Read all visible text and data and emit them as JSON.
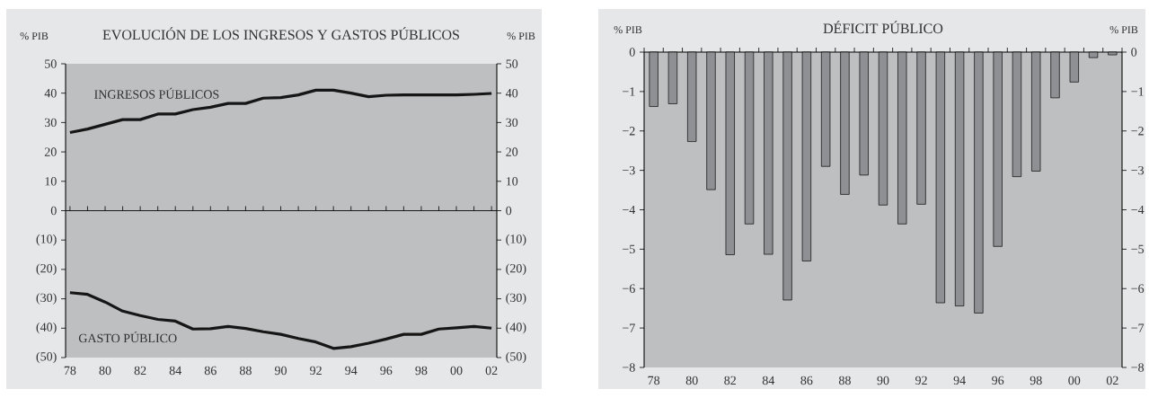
{
  "chart_data": [
    {
      "type": "line",
      "title": "EVOLUCIÓN DE LOS INGRESOS Y GASTOS PÚBLICOS",
      "ylabel": "% PIB",
      "y2label": "% PIB",
      "x": [
        1978,
        1979,
        1980,
        1981,
        1982,
        1983,
        1984,
        1985,
        1986,
        1987,
        1988,
        1989,
        1990,
        1991,
        1992,
        1993,
        1994,
        1995,
        1996,
        1997,
        1998,
        1999,
        2000,
        2001,
        2002
      ],
      "series": [
        {
          "name": "INGRESOS PÚBLICOS",
          "color": "#161616",
          "values": [
            26.6,
            27.8,
            29.4,
            31.0,
            31.0,
            32.9,
            32.9,
            34.4,
            35.2,
            36.5,
            36.5,
            38.3,
            38.5,
            39.4,
            41.0,
            41.0,
            40.0,
            38.8,
            39.3,
            39.4,
            39.4,
            39.4,
            39.4,
            39.6,
            39.9
          ]
        },
        {
          "name": "GASTO PÚBLICO",
          "color": "#161616",
          "values": [
            -27.9,
            -28.5,
            -31.1,
            -34.2,
            -35.7,
            -37.0,
            -37.6,
            -40.3,
            -40.2,
            -39.4,
            -40.1,
            -41.2,
            -42.1,
            -43.5,
            -44.7,
            -46.9,
            -46.3,
            -45.1,
            -43.7,
            -42.1,
            -42.1,
            -40.3,
            -39.9,
            -39.4,
            -40.0
          ]
        }
      ],
      "xlim": [
        1977.75,
        2002.3
      ],
      "xticks": [
        {
          "value": 1978,
          "label": "78"
        },
        {
          "value": 1979,
          "label": null
        },
        {
          "value": 1980,
          "label": "80"
        },
        {
          "value": 1981,
          "label": null
        },
        {
          "value": 1982,
          "label": "82"
        },
        {
          "value": 1983,
          "label": null
        },
        {
          "value": 1984,
          "label": "84"
        },
        {
          "value": 1985,
          "label": null
        },
        {
          "value": 1986,
          "label": "86"
        },
        {
          "value": 1987,
          "label": null
        },
        {
          "value": 1988,
          "label": "88"
        },
        {
          "value": 1989,
          "label": null
        },
        {
          "value": 1990,
          "label": "90"
        },
        {
          "value": 1991,
          "label": null
        },
        {
          "value": 1992,
          "label": "92"
        },
        {
          "value": 1993,
          "label": null
        },
        {
          "value": 1994,
          "label": "94"
        },
        {
          "value": 1995,
          "label": null
        },
        {
          "value": 1996,
          "label": "96"
        },
        {
          "value": 1997,
          "label": null
        },
        {
          "value": 1998,
          "label": "98"
        },
        {
          "value": 1999,
          "label": null
        },
        {
          "value": 2000,
          "label": "00"
        },
        {
          "value": 2001,
          "label": null
        },
        {
          "value": 2002,
          "label": "02"
        }
      ],
      "ylim": [
        -50,
        50
      ],
      "yticks": [
        50,
        40,
        30,
        20,
        10,
        0,
        {
          "value": -10,
          "label": "(10)"
        },
        {
          "value": -20,
          "label": "(20)"
        },
        {
          "value": -30,
          "label": "(30)"
        },
        {
          "value": -40,
          "label": "(40)"
        },
        {
          "value": -50,
          "label": "(50)"
        }
      ],
      "y2lim": [
        -50,
        50
      ],
      "y2ticks": [
        50,
        40,
        30,
        20,
        10,
        0,
        {
          "value": -10,
          "label": "(10)"
        },
        {
          "value": -20,
          "label": "(20)"
        },
        {
          "value": -30,
          "label": "(30)"
        },
        {
          "value": -40,
          "label": "(40)"
        },
        {
          "value": -50,
          "label": "(50)"
        }
      ],
      "ref_lines": [
        {
          "axis": "y",
          "value": 0,
          "color": "#1a1a1a"
        }
      ]
    },
    {
      "type": "bar",
      "title": "DÉFICIT PÚBLICO",
      "ylabel": "% PIB",
      "y2label": "% PIB",
      "categories": [
        "78",
        null,
        "80",
        null,
        "82",
        null,
        "84",
        null,
        "86",
        null,
        "88",
        null,
        "90",
        null,
        "92",
        null,
        "94",
        null,
        "96",
        null,
        "98",
        null,
        "00",
        null,
        "02"
      ],
      "values": [
        -1.38,
        -1.31,
        -2.27,
        -3.49,
        -5.14,
        -4.36,
        -5.13,
        -6.29,
        -5.3,
        -2.9,
        -3.61,
        -3.12,
        -3.88,
        -4.36,
        -3.86,
        -6.36,
        -6.44,
        -6.62,
        -4.93,
        -3.16,
        -3.02,
        -1.16,
        -0.76,
        -0.14,
        -0.07
      ],
      "color": "#8f9094",
      "ylim": [
        -8,
        0
      ],
      "yticks": [
        0,
        {
          "value": -1,
          "label": "−1"
        },
        {
          "value": -2,
          "label": "−2"
        },
        {
          "value": -3,
          "label": "−3"
        },
        {
          "value": -4,
          "label": "−4"
        },
        {
          "value": -5,
          "label": "−5"
        },
        {
          "value": -6,
          "label": "−6"
        },
        {
          "value": -7,
          "label": "−7"
        },
        {
          "value": -8,
          "label": "−8"
        }
      ],
      "y2lim": [
        -8,
        0
      ],
      "y2ticks": [
        0,
        {
          "value": -1,
          "label": "−1"
        },
        {
          "value": -2,
          "label": "−2"
        },
        {
          "value": -3,
          "label": "−3"
        },
        {
          "value": -4,
          "label": "−4"
        },
        {
          "value": -5,
          "label": "−5"
        },
        {
          "value": -6,
          "label": "−6"
        },
        {
          "value": -7,
          "label": "−7"
        },
        {
          "value": -8,
          "label": "−8"
        }
      ]
    }
  ]
}
